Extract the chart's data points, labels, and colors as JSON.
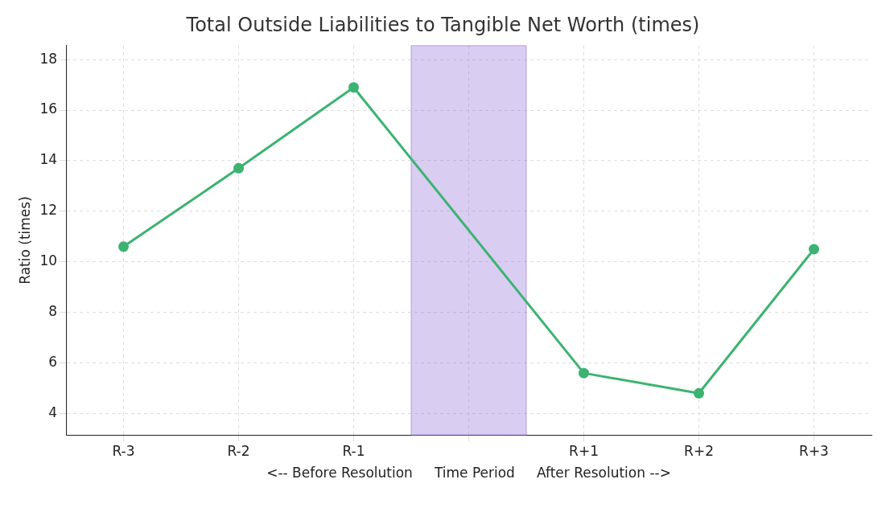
{
  "chart_data": {
    "type": "line",
    "title": "Total Outside Liabilities to Tangible Net Worth (times)",
    "xlabel": "<-- Before Resolution     Time Period     After Resolution -->",
    "ylabel": "Ratio (times)",
    "categories": [
      "R-3",
      "R-2",
      "R-1",
      null,
      "R+1",
      "R+2",
      "R+3"
    ],
    "series": [
      {
        "color": "#3cb371",
        "values": [
          10.6,
          13.7,
          16.9,
          null,
          5.6,
          4.8,
          10.5
        ]
      }
    ],
    "ylim": [
      3.15,
      18.55
    ],
    "yticks": [
      4,
      6,
      8,
      10,
      12,
      14,
      16,
      18
    ],
    "bands": [
      {
        "axis": "x",
        "from": "R-1",
        "to": "R+1",
        "color": "#9370db"
      }
    ],
    "grid": true,
    "marker": "circle",
    "line_style": "solid"
  }
}
